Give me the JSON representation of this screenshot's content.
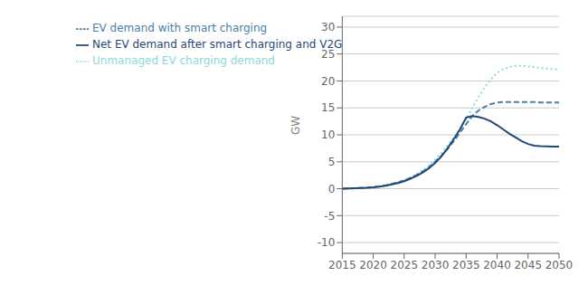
{
  "chart_data": {
    "type": "line",
    "ylabel": "GW",
    "x": [
      2015,
      2016,
      2017,
      2018,
      2019,
      2020,
      2021,
      2022,
      2023,
      2024,
      2025,
      2026,
      2027,
      2028,
      2029,
      2030,
      2031,
      2032,
      2033,
      2034,
      2035,
      2036,
      2037,
      2038,
      2039,
      2040,
      2041,
      2042,
      2043,
      2044,
      2045,
      2046,
      2047,
      2048,
      2049,
      2050
    ],
    "series": [
      {
        "name": "Unmanaged EV charging demand",
        "color": "#8dd8d8",
        "line_style": "dotted",
        "values": [
          0.0,
          0.05,
          0.1,
          0.15,
          0.2,
          0.3,
          0.45,
          0.65,
          0.9,
          1.2,
          1.6,
          2.1,
          2.7,
          3.4,
          4.3,
          5.4,
          6.6,
          8.0,
          9.5,
          11.2,
          13.0,
          15.0,
          17.0,
          18.8,
          20.3,
          21.5,
          22.2,
          22.6,
          22.8,
          22.8,
          22.7,
          22.6,
          22.4,
          22.3,
          22.2,
          22.1
        ]
      },
      {
        "name": "EV demand with smart charging",
        "color": "#4a7fa8",
        "line_style": "dashed",
        "values": [
          0.0,
          0.05,
          0.1,
          0.15,
          0.2,
          0.3,
          0.44,
          0.63,
          0.88,
          1.18,
          1.55,
          2.0,
          2.55,
          3.2,
          4.0,
          5.0,
          6.1,
          7.4,
          8.8,
          10.4,
          12.0,
          13.5,
          14.5,
          15.2,
          15.7,
          16.0,
          16.1,
          16.1,
          16.1,
          16.1,
          16.1,
          16.1,
          16.0,
          16.0,
          16.0,
          16.0
        ]
      },
      {
        "name": "Net EV demand after smart charging and V2G",
        "color": "#1f4878",
        "line_style": "solid",
        "values": [
          0.0,
          0.05,
          0.1,
          0.14,
          0.18,
          0.27,
          0.4,
          0.57,
          0.8,
          1.05,
          1.4,
          1.85,
          2.4,
          3.0,
          3.8,
          4.8,
          6.0,
          7.5,
          9.2,
          11.0,
          13.2,
          13.5,
          13.3,
          13.0,
          12.5,
          11.8,
          11.0,
          10.2,
          9.5,
          8.8,
          8.3,
          8.0,
          7.9,
          7.85,
          7.8,
          7.8
        ]
      }
    ],
    "xlim": [
      2015,
      2050
    ],
    "xticks": [
      2015,
      2020,
      2025,
      2030,
      2035,
      2040,
      2045,
      2050
    ],
    "ylim": [
      -12,
      32
    ],
    "yticks": [
      -10,
      -5,
      0,
      5,
      10,
      15,
      20,
      25,
      30
    ],
    "grid": true,
    "legend": "upper left"
  }
}
